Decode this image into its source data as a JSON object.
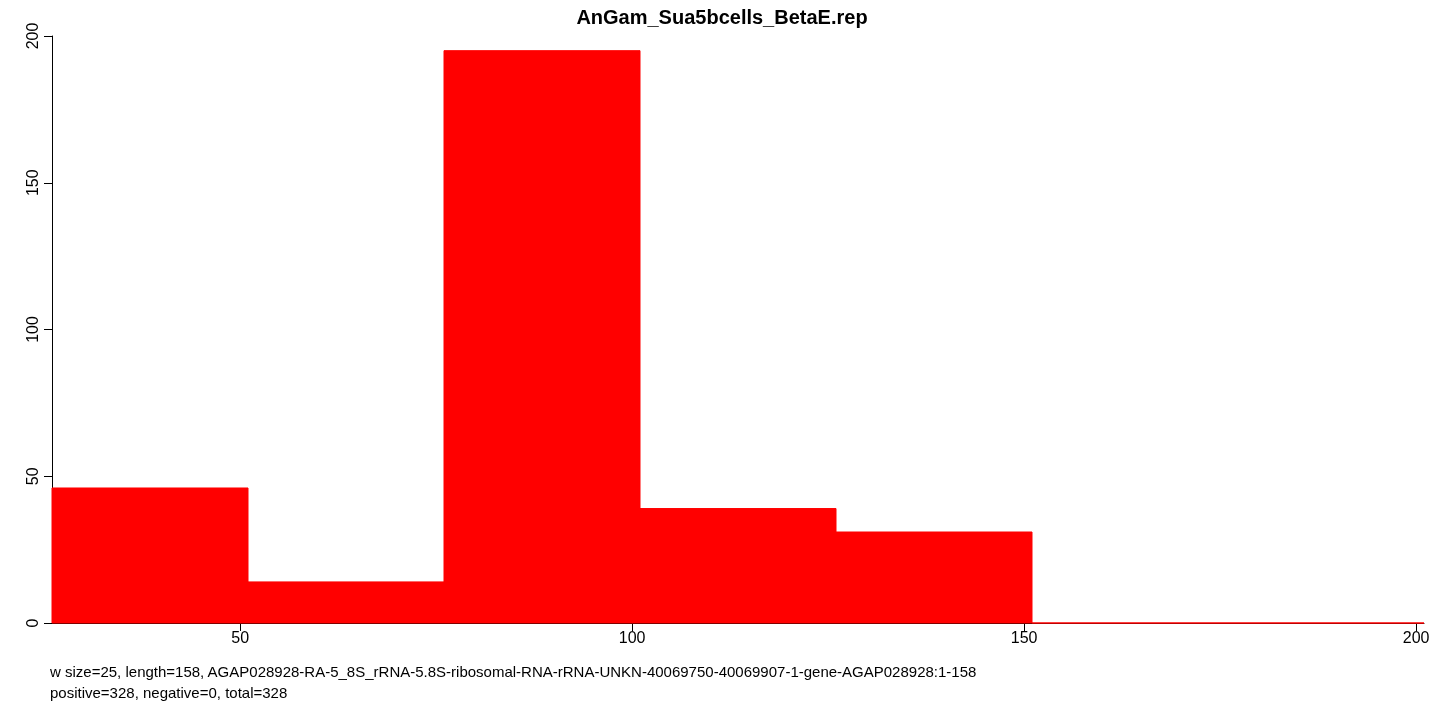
{
  "chart_data": {
    "type": "histogram",
    "title": "AnGam_Sua5bcells_BetaE.rep",
    "bins": [
      26,
      51,
      76,
      101,
      126,
      151,
      176,
      201
    ],
    "values": [
      46,
      14,
      195,
      39,
      31,
      0,
      0
    ],
    "color": "#ff0000",
    "xlim": [
      26,
      201
    ],
    "xticks": [
      50,
      100,
      150,
      200
    ],
    "ylim": [
      0,
      200
    ],
    "yticks": [
      0,
      50,
      100,
      150,
      200
    ],
    "grid": false,
    "annotations": [
      "w size=25, length=158, AGAP028928-RA-5_8S_rRNA-5.8S-ribosomal-RNA-rRNA-UNKN-40069750-40069907-1-gene-AGAP028928:1-158",
      "positive=328, negative=0, total=328"
    ]
  }
}
